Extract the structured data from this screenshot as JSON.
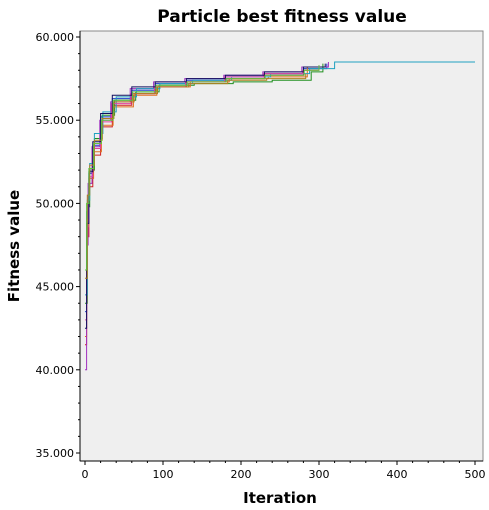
{
  "chart_data": {
    "type": "line",
    "title": "Particle best fitness value",
    "xlabel": "Iteration",
    "ylabel": "Fitness value",
    "xlim": [
      0,
      500
    ],
    "ylim": [
      35,
      60
    ],
    "x_ticks": [
      0,
      100,
      200,
      300,
      400,
      500
    ],
    "x_tick_labels": [
      "0",
      "100",
      "200",
      "300",
      "400",
      "500"
    ],
    "y_ticks": [
      35,
      40,
      45,
      50,
      55,
      60
    ],
    "y_tick_labels": [
      "35.000",
      "40.000",
      "45.000",
      "50.000",
      "55.000",
      "60.000"
    ],
    "grid": false,
    "legend": "none",
    "plot_background": "#efefef",
    "series": [
      {
        "color": "#1f3fd0",
        "x": [
          0,
          2,
          5,
          10,
          20,
          35,
          60,
          90,
          130,
          180,
          230,
          280,
          310
        ],
        "y": [
          43.5,
          49.5,
          51.8,
          53.5,
          55.2,
          56.3,
          56.8,
          57.2,
          57.4,
          57.6,
          57.8,
          58.1,
          58.4
        ]
      },
      {
        "color": "#d02020",
        "x": [
          0,
          2,
          5,
          10,
          20,
          35,
          60,
          90,
          130,
          180,
          230,
          280,
          300
        ],
        "y": [
          41.5,
          48.0,
          51.0,
          52.9,
          54.6,
          55.9,
          56.6,
          57.0,
          57.3,
          57.5,
          57.7,
          58.0,
          58.3
        ]
      },
      {
        "color": "#209020",
        "x": [
          0,
          3,
          6,
          12,
          22,
          38,
          65,
          95,
          140,
          190,
          240,
          290,
          305
        ],
        "y": [
          44.0,
          49.8,
          52.0,
          53.9,
          55.3,
          56.2,
          56.7,
          57.1,
          57.2,
          57.3,
          57.4,
          57.9,
          58.4
        ]
      },
      {
        "color": "#e07020",
        "x": [
          0,
          2,
          5,
          11,
          21,
          36,
          62,
          92,
          135,
          185,
          235,
          285
        ],
        "y": [
          42.0,
          48.6,
          51.5,
          53.1,
          54.7,
          55.8,
          56.5,
          57.0,
          57.3,
          57.5,
          57.6,
          58.2
        ]
      },
      {
        "color": "#a030c0",
        "x": [
          0,
          2,
          4,
          9,
          19,
          33,
          58,
          88,
          128,
          178,
          228,
          278,
          312
        ],
        "y": [
          40.0,
          47.5,
          51.2,
          53.4,
          55.0,
          56.1,
          56.9,
          57.3,
          57.5,
          57.7,
          57.9,
          58.2,
          58.5
        ]
      },
      {
        "color": "#20a0c0",
        "x": [
          0,
          3,
          6,
          12,
          23,
          40,
          66,
          96,
          138,
          188,
          238,
          288,
          320,
          500
        ],
        "y": [
          44.5,
          50.2,
          52.4,
          54.2,
          55.5,
          56.4,
          56.9,
          57.2,
          57.4,
          57.6,
          57.8,
          58.1,
          58.5,
          58.5
        ]
      },
      {
        "color": "#e040a0",
        "x": [
          0,
          2,
          5,
          10,
          20,
          34,
          59,
          89,
          129,
          179,
          229,
          279
        ],
        "y": [
          43.0,
          49.0,
          51.6,
          53.3,
          54.9,
          56.0,
          56.6,
          57.0,
          57.3,
          57.6,
          57.8,
          58.0
        ]
      },
      {
        "color": "#101060",
        "x": [
          0,
          2,
          5,
          10,
          20,
          35,
          60,
          90,
          130,
          180,
          230,
          280,
          308
        ],
        "y": [
          42.5,
          48.8,
          51.9,
          53.7,
          55.4,
          56.5,
          57.0,
          57.3,
          57.5,
          57.7,
          57.9,
          58.2,
          58.4
        ]
      },
      {
        "color": "#b08020",
        "x": [
          0,
          3,
          6,
          12,
          22,
          37,
          63,
          93,
          133,
          183,
          233,
          283
        ],
        "y": [
          45.5,
          50.5,
          52.3,
          53.8,
          55.1,
          56.1,
          56.6,
          57.0,
          57.2,
          57.4,
          57.5,
          57.8
        ]
      },
      {
        "color": "#60c040",
        "x": [
          0,
          2,
          5,
          11,
          21,
          36,
          61,
          91,
          131,
          181,
          231,
          281,
          300
        ],
        "y": [
          46.0,
          50.0,
          52.1,
          53.6,
          55.0,
          56.2,
          56.7,
          57.1,
          57.3,
          57.5,
          57.7,
          58.0,
          58.3
        ]
      }
    ]
  }
}
